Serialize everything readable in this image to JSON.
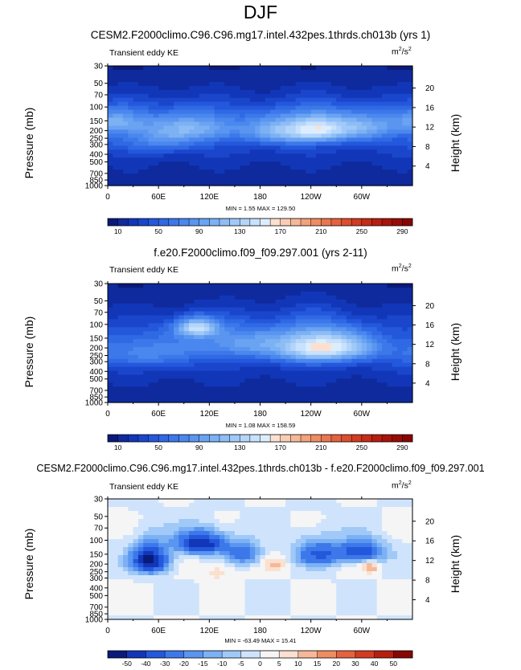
{
  "title": "DJF",
  "chart_data": [
    {
      "type": "heatmap",
      "title": "CESM2.F2000climo.C96.C96.mg17.intel.432pes.1thrds.ch013b (yrs 1)",
      "subtitle_left": "Transient eddy KE",
      "units_base": "m",
      "units_exp1": "2",
      "units_mid": "/s",
      "units_exp2": "2",
      "ylabel": "Pressure (mb)",
      "ylabel_right": "Height (km)",
      "xticks": [
        "0",
        "60E",
        "120E",
        "180",
        "120W",
        "60W"
      ],
      "yticks": [
        "30",
        "50",
        "70",
        "100",
        "150",
        "200",
        "250",
        "300",
        "400",
        "500",
        "700",
        "850",
        "1000"
      ],
      "yticks_right": [
        "20",
        "16",
        "12",
        "8",
        "4"
      ],
      "min_max": "MIN =   1.55  MAX = 129.50",
      "colorbar_labels": [
        "10",
        "50",
        "90",
        "130",
        "170",
        "210",
        "250",
        "290"
      ],
      "levels": [
        0,
        10,
        20,
        30,
        40,
        50,
        60,
        70,
        80,
        90,
        100,
        110,
        120,
        130,
        140,
        150,
        160,
        170,
        180,
        190,
        200,
        210,
        220,
        230,
        240,
        250,
        260,
        270,
        280,
        290,
        300
      ],
      "jets": [
        {
          "lon": 10,
          "p": 150,
          "amp": 55,
          "slon": 25,
          "sp": 40
        },
        {
          "lon": 110,
          "p": 180,
          "amp": 55,
          "slon": 40,
          "sp": 55
        },
        {
          "lon": 210,
          "p": 200,
          "amp": 75,
          "slon": 30,
          "sp": 60
        },
        {
          "lon": 250,
          "p": 190,
          "amp": 80,
          "slon": 22,
          "sp": 55
        },
        {
          "lon": 300,
          "p": 180,
          "amp": 65,
          "slon": 30,
          "sp": 55
        },
        {
          "lon": 60,
          "p": 250,
          "amp": 40,
          "slon": 40,
          "sp": 80
        }
      ],
      "base": 30
    },
    {
      "type": "heatmap",
      "title": "f.e20.F2000climo.f09_f09.297.001 (yrs 2-11)",
      "subtitle_left": "Transient eddy KE",
      "units_base": "m",
      "units_exp1": "2",
      "units_mid": "/s",
      "units_exp2": "2",
      "ylabel": "Pressure (mb)",
      "ylabel_right": "Height (km)",
      "xticks": [
        "0",
        "60E",
        "120E",
        "180",
        "120W",
        "60W"
      ],
      "yticks": [
        "30",
        "50",
        "70",
        "100",
        "150",
        "200",
        "250",
        "300",
        "400",
        "500",
        "700",
        "850",
        "1000"
      ],
      "yticks_right": [
        "20",
        "16",
        "12",
        "8",
        "4"
      ],
      "min_max": "MIN =   1.08  MAX = 158.59",
      "colorbar_labels": [
        "10",
        "50",
        "90",
        "130",
        "170",
        "210",
        "250",
        "290"
      ],
      "levels": [
        0,
        10,
        20,
        30,
        40,
        50,
        60,
        70,
        80,
        90,
        100,
        110,
        120,
        130,
        140,
        150,
        160,
        170,
        180,
        190,
        200,
        210,
        220,
        230,
        240,
        250,
        260,
        270,
        280,
        290,
        300
      ],
      "jets": [
        {
          "lon": 105,
          "p": 110,
          "amp": 100,
          "slon": 18,
          "sp": 22
        },
        {
          "lon": 160,
          "p": 170,
          "amp": 55,
          "slon": 40,
          "sp": 60
        },
        {
          "lon": 240,
          "p": 200,
          "amp": 95,
          "slon": 30,
          "sp": 70
        },
        {
          "lon": 280,
          "p": 190,
          "amp": 65,
          "slon": 30,
          "sp": 60
        },
        {
          "lon": 40,
          "p": 230,
          "amp": 40,
          "slon": 50,
          "sp": 80
        }
      ],
      "base": 28
    },
    {
      "type": "heatmap",
      "title": "CESM2.F2000climo.C96.C96.mg17.intel.432pes.1thrds.ch013b - f.e20.F2000climo.f09_f09.297.001",
      "subtitle_left": "Transient eddy KE",
      "units_base": "m",
      "units_exp1": "2",
      "units_mid": "/s",
      "units_exp2": "2",
      "ylabel": "Pressure (mb)",
      "ylabel_right": "Height (km)",
      "xticks": [
        "0",
        "60E",
        "120E",
        "180",
        "120W",
        "60W"
      ],
      "yticks": [
        "30",
        "50",
        "70",
        "100",
        "150",
        "200",
        "250",
        "300",
        "400",
        "500",
        "700",
        "850",
        "1000"
      ],
      "yticks_right": [
        "20",
        "16",
        "12",
        "8",
        "4"
      ],
      "min_max": "MIN = -63.49  MAX =  15.41",
      "colorbar_labels": [
        "-50",
        "-40",
        "-30",
        "-20",
        "-15",
        "-10",
        "-5",
        "0",
        "5",
        "10",
        "15",
        "20",
        "30",
        "40",
        "50"
      ],
      "levels": [
        -60,
        -50,
        -40,
        -30,
        -20,
        -15,
        -10,
        -5,
        0,
        5,
        10,
        15,
        20,
        30,
        40,
        50,
        60
      ],
      "jets": [
        {
          "lon": 50,
          "p": 180,
          "amp": -55,
          "slon": 15,
          "sp": 50
        },
        {
          "lon": 110,
          "p": 110,
          "amp": -50,
          "slon": 20,
          "sp": 25
        },
        {
          "lon": 160,
          "p": 150,
          "amp": -25,
          "slon": 15,
          "sp": 35
        },
        {
          "lon": 250,
          "p": 150,
          "amp": -30,
          "slon": 20,
          "sp": 40
        },
        {
          "lon": 300,
          "p": 140,
          "amp": -40,
          "slon": 18,
          "sp": 30
        },
        {
          "lon": 200,
          "p": 200,
          "amp": 10,
          "slon": 10,
          "sp": 30
        },
        {
          "lon": 310,
          "p": 220,
          "amp": 15,
          "slon": 6,
          "sp": 30
        },
        {
          "lon": 130,
          "p": 250,
          "amp": 8,
          "slon": 12,
          "sp": 60
        }
      ],
      "base": 0
    }
  ],
  "colorbar_colors": {
    "full": [
      "#0a1a7a",
      "#0e2a9c",
      "#1236b8",
      "#1a46cc",
      "#2458dc",
      "#3069e4",
      "#3c78ea",
      "#4a87ee",
      "#5a95f0",
      "#6aa3f2",
      "#7cb1f4",
      "#8ebdf6",
      "#a0c9f8",
      "#b4d5fa",
      "#c8e1fc",
      "#dceefe",
      "#fbe0d0",
      "#f9cdb4",
      "#f6b898",
      "#f2a27c",
      "#ee8c62",
      "#ea7650",
      "#e4623e",
      "#dc4e2e",
      "#d23c22",
      "#c62c18",
      "#b81e10",
      "#a8140c",
      "#980c08",
      "#880604"
    ],
    "diff": [
      "#0a1a7a",
      "#1236b8",
      "#2458dc",
      "#3c78ea",
      "#5a95f0",
      "#7cb1f4",
      "#a0c9f8",
      "#cfe4fc",
      "#f5f5f5",
      "#fbe0d0",
      "#f6b898",
      "#ee8c62",
      "#e4623e",
      "#d23c22",
      "#b81e10",
      "#880604"
    ]
  }
}
